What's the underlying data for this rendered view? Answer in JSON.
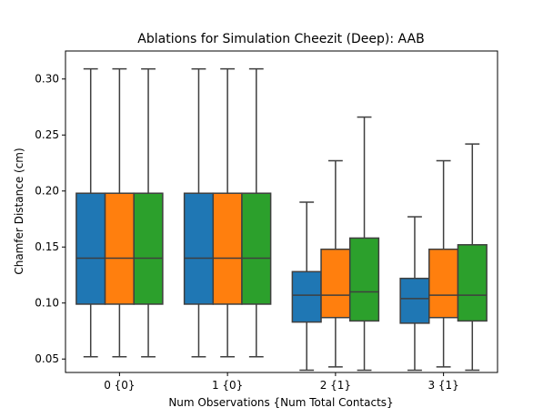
{
  "chart_data": {
    "type": "box",
    "title": "Ablations for Simulation Cheezit (Deep): AAB",
    "xlabel": "Num Observations {Num Total Contacts}",
    "ylabel": "Chamfer Distance (cm)",
    "categories": [
      "0 {0}",
      "1 {0}",
      "2 {1}",
      "3 {1}"
    ],
    "ylim": [
      0.038,
      0.325
    ],
    "yticks": [
      0.05,
      0.1,
      0.15,
      0.2,
      0.25,
      0.3
    ],
    "ytick_labels": [
      "0.05",
      "0.10",
      "0.15",
      "0.20",
      "0.25",
      "0.30"
    ],
    "grid": false,
    "series": [
      {
        "color": "#1f77b4",
        "boxes": [
          {
            "whislo": 0.052,
            "q1": 0.099,
            "med": 0.14,
            "q3": 0.198,
            "whishi": 0.309
          },
          {
            "whislo": 0.052,
            "q1": 0.099,
            "med": 0.14,
            "q3": 0.198,
            "whishi": 0.309
          },
          {
            "whislo": 0.04,
            "q1": 0.083,
            "med": 0.107,
            "q3": 0.128,
            "whishi": 0.19
          },
          {
            "whislo": 0.04,
            "q1": 0.082,
            "med": 0.104,
            "q3": 0.122,
            "whishi": 0.177
          }
        ]
      },
      {
        "color": "#ff7f0e",
        "boxes": [
          {
            "whislo": 0.052,
            "q1": 0.099,
            "med": 0.14,
            "q3": 0.198,
            "whishi": 0.309
          },
          {
            "whislo": 0.052,
            "q1": 0.099,
            "med": 0.14,
            "q3": 0.198,
            "whishi": 0.309
          },
          {
            "whislo": 0.043,
            "q1": 0.087,
            "med": 0.107,
            "q3": 0.148,
            "whishi": 0.227
          },
          {
            "whislo": 0.043,
            "q1": 0.087,
            "med": 0.107,
            "q3": 0.148,
            "whishi": 0.227
          }
        ]
      },
      {
        "color": "#2ca02c",
        "boxes": [
          {
            "whislo": 0.052,
            "q1": 0.099,
            "med": 0.14,
            "q3": 0.198,
            "whishi": 0.309
          },
          {
            "whislo": 0.052,
            "q1": 0.099,
            "med": 0.14,
            "q3": 0.198,
            "whishi": 0.309
          },
          {
            "whislo": 0.04,
            "q1": 0.084,
            "med": 0.11,
            "q3": 0.158,
            "whishi": 0.266
          },
          {
            "whislo": 0.04,
            "q1": 0.084,
            "med": 0.107,
            "q3": 0.152,
            "whishi": 0.242
          }
        ]
      }
    ],
    "line_color": "#3f3f3f"
  }
}
